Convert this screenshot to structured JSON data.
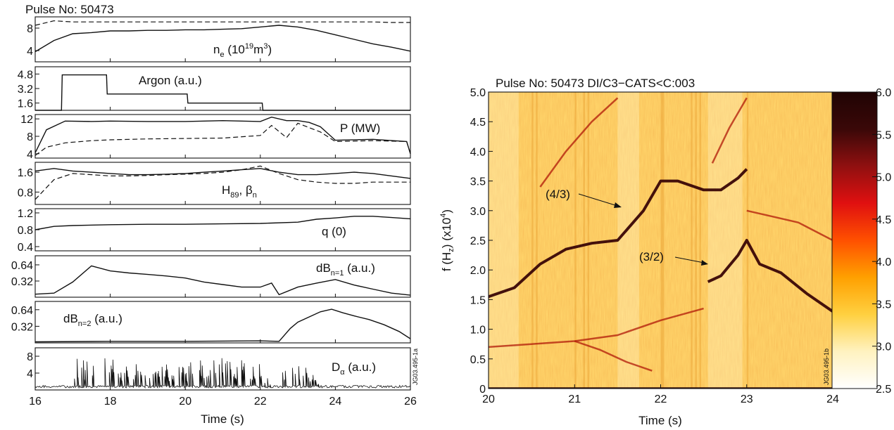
{
  "left_figure": {
    "title": "Pulse No: 50473",
    "side_code": "JG03.495-1a",
    "xlabel": "Time (s)"
  },
  "right_figure": {
    "title": "Pulse No: 50473 DI/C3−CATS<C:003",
    "side_code": "JG03.495-1b",
    "xlabel": "Time (s)",
    "ylabel_prefix": "f (H",
    "ylabel_sub": "z",
    "ylabel_mid": ") (x10",
    "ylabel_sup": "4",
    "ylabel_suffix": ")",
    "annotation_43": "(4/3)",
    "annotation_32": "(3/2)"
  },
  "chart_data": [
    {
      "type": "line",
      "x": [
        16,
        16.5,
        17,
        17.5,
        18,
        18.5,
        19,
        19.5,
        20,
        20.5,
        21,
        21.5,
        22,
        22.5,
        23,
        23.5,
        24,
        24.5,
        25,
        25.5,
        26
      ],
      "xlim": [
        16,
        26
      ],
      "xticks": [
        "16",
        "18",
        "20",
        "22",
        "24",
        "26"
      ],
      "ylim": [
        2,
        10
      ],
      "yticks": [
        "4",
        "8"
      ],
      "label_base": "n",
      "label_sub": "e",
      "label_mid": " (10",
      "label_sup": "19",
      "label_tail": "m",
      "label_sup2": "3",
      "label_end": ")",
      "series": [
        {
          "style": "solid",
          "values": [
            3.8,
            5.8,
            7.0,
            7.2,
            7.5,
            7.5,
            7.6,
            7.6,
            7.7,
            7.7,
            7.8,
            7.9,
            8.2,
            8.5,
            8.2,
            7.6,
            6.8,
            6.0,
            5.2,
            4.6,
            3.9
          ]
        },
        {
          "style": "dashed",
          "values": [
            8.5,
            9.3,
            9.1,
            9.1,
            9.1,
            9.1,
            9.1,
            9.1,
            9.1,
            9.1,
            9.1,
            9.1,
            9.1,
            9.1,
            9.1,
            9.1,
            9.1,
            9.1,
            9.1,
            9.0,
            9.0
          ]
        }
      ],
      "grid": false
    },
    {
      "type": "line",
      "x": [
        16,
        16.7,
        16.72,
        17.9,
        17.92,
        20.05,
        20.07,
        22.05,
        22.07,
        26
      ],
      "xlim": [
        16,
        26
      ],
      "ylim": [
        0.8,
        5.6
      ],
      "yticks": [
        "4.8",
        "3.2",
        "1.6"
      ],
      "label": "Argon (a.u.)",
      "series": [
        {
          "style": "solid",
          "values": [
            0.8,
            0.8,
            4.7,
            4.7,
            2.6,
            2.6,
            1.6,
            1.6,
            0.8,
            0.8
          ]
        }
      ],
      "grid": false
    },
    {
      "type": "line",
      "x": [
        16,
        16.3,
        16.8,
        17.5,
        18,
        19,
        20,
        21,
        22,
        22.3,
        22.7,
        23,
        23.3,
        23.6,
        24,
        25,
        25.9,
        26
      ],
      "xlim": [
        16,
        26
      ],
      "ylim": [
        3,
        13
      ],
      "yticks": [
        "12",
        "8",
        "4"
      ],
      "label": "P (MW)",
      "series": [
        {
          "style": "solid",
          "values": [
            4.2,
            9.5,
            11.5,
            11.4,
            11.5,
            11.4,
            11.4,
            11.6,
            11.4,
            12.4,
            11.6,
            11.6,
            11.2,
            10.2,
            7.1,
            7.3,
            6.8,
            4.0
          ]
        },
        {
          "style": "dashed",
          "values": [
            3.6,
            5.5,
            6.5,
            7.0,
            7.2,
            7.4,
            7.5,
            7.6,
            8.2,
            10.5,
            7.7,
            11.0,
            10.0,
            9.0,
            6.8,
            7.0,
            6.8,
            4.0
          ]
        }
      ],
      "grid": false
    },
    {
      "type": "line",
      "x": [
        16,
        16.5,
        17,
        17.5,
        18,
        18.5,
        19,
        19.5,
        20,
        20.5,
        21,
        21.5,
        22,
        22.5,
        23,
        23.5,
        24,
        24.5,
        25,
        25.5,
        26
      ],
      "xlim": [
        16,
        26
      ],
      "ylim": [
        0.3,
        2.0
      ],
      "yticks": [
        "1.6",
        "0.8"
      ],
      "label_base": "H",
      "label_sub": "89",
      "label_mid": ", β",
      "label_sub2": "n",
      "series": [
        {
          "style": "solid",
          "values": [
            1.65,
            1.75,
            1.65,
            1.6,
            1.55,
            1.5,
            1.5,
            1.52,
            1.55,
            1.6,
            1.65,
            1.7,
            1.75,
            1.6,
            1.5,
            1.5,
            1.55,
            1.6,
            1.55,
            1.45,
            1.35
          ]
        },
        {
          "style": "dashed",
          "values": [
            0.5,
            1.3,
            1.55,
            1.5,
            1.45,
            1.45,
            1.47,
            1.5,
            1.52,
            1.55,
            1.6,
            1.7,
            1.85,
            1.55,
            1.3,
            1.2,
            1.15,
            1.15,
            1.2,
            1.2,
            1.2
          ]
        }
      ],
      "grid": false
    },
    {
      "type": "line",
      "x": [
        16,
        16.5,
        17,
        18,
        19,
        20,
        21,
        22,
        23,
        23.5,
        24,
        24.5,
        25,
        25.5,
        26
      ],
      "xlim": [
        16,
        26
      ],
      "ylim": [
        0.3,
        1.3
      ],
      "yticks": [
        "1.2",
        "0.8",
        "0.4"
      ],
      "label": "q (0)",
      "series": [
        {
          "style": "solid",
          "values": [
            0.8,
            0.88,
            0.9,
            0.92,
            0.93,
            0.93,
            0.94,
            0.95,
            0.98,
            1.05,
            1.08,
            1.12,
            1.12,
            1.09,
            1.06
          ]
        }
      ],
      "grid": false
    },
    {
      "type": "line",
      "x": [
        16,
        16.5,
        17,
        17.5,
        18,
        18.5,
        19,
        19.5,
        20,
        20.5,
        21,
        21.5,
        22,
        22.3,
        22.5,
        23,
        23.5,
        24,
        24.5,
        25,
        25.5,
        26
      ],
      "xlim": [
        16,
        26
      ],
      "ylim": [
        0,
        0.82
      ],
      "yticks": [
        "0.64",
        "0.32"
      ],
      "label_base": "dB",
      "label_sub": "n=1",
      "label_tail": " (a.u.)",
      "series": [
        {
          "style": "solid",
          "values": [
            0.06,
            0.08,
            0.3,
            0.62,
            0.52,
            0.48,
            0.45,
            0.42,
            0.38,
            0.3,
            0.25,
            0.2,
            0.2,
            0.28,
            0.05,
            0.2,
            0.28,
            0.35,
            0.24,
            0.16,
            0.08,
            0.04
          ]
        }
      ],
      "grid": false
    },
    {
      "type": "line",
      "x": [
        16,
        18,
        20,
        22,
        22.5,
        22.8,
        23,
        23.3,
        23.6,
        23.9,
        24.2,
        24.5,
        24.9,
        25.3,
        25.7,
        26
      ],
      "xlim": [
        16,
        26
      ],
      "ylim": [
        0,
        0.8
      ],
      "yticks": [
        "0.64",
        "0.32"
      ],
      "label_base": "dB",
      "label_sub": "n=2",
      "label_tail": " (a.u.)",
      "series": [
        {
          "style": "solid",
          "values": [
            0.02,
            0.03,
            0.03,
            0.04,
            0.03,
            0.28,
            0.4,
            0.5,
            0.6,
            0.65,
            0.58,
            0.52,
            0.45,
            0.35,
            0.22,
            0.08
          ]
        }
      ],
      "grid": false
    },
    {
      "type": "line",
      "x": [
        16,
        16.8,
        17,
        18,
        19,
        20,
        21,
        22,
        22.3,
        22.6,
        23.2,
        23.6,
        24.2,
        25,
        26
      ],
      "xlim": [
        16,
        26
      ],
      "xticks": [
        "16",
        "18",
        "20",
        "22",
        "24",
        "26"
      ],
      "ylim": [
        0,
        10
      ],
      "yticks": [
        "8",
        "4"
      ],
      "label_base": "D",
      "label_sub": "α",
      "label_tail": " (a.u.)",
      "series": [
        {
          "style": "spiky",
          "values": [
            0.3,
            0.4,
            8.5,
            7.5,
            6.0,
            6.5,
            8.0,
            7.0,
            0.5,
            6.0,
            6.5,
            0.8,
            0.6,
            0.5,
            0.4
          ]
        }
      ],
      "grid": false
    },
    {
      "type": "heatmap",
      "xlabel": "Time (s)",
      "xlim": [
        20,
        24
      ],
      "xticks": [
        "20",
        "21",
        "22",
        "23",
        "24"
      ],
      "ylim": [
        0,
        5
      ],
      "yticks": [
        "0",
        "0.5",
        "1.0",
        "1.5",
        "2.0",
        "2.5",
        "3.0",
        "3.5",
        "4.0",
        "4.5",
        "5.0"
      ],
      "colorbar": {
        "range": [
          2.5,
          6.0
        ],
        "ticks": [
          "6.0",
          "5.5",
          "5.0",
          "4.5",
          "4.0",
          "3.5",
          "3.0",
          "2.5"
        ],
        "colors": [
          "#ffffff",
          "#fff2c0",
          "#ffd040",
          "#ffa000",
          "#ff5000",
          "#e01010",
          "#901010",
          "#3a0808",
          "#200404"
        ]
      },
      "ridges": [
        {
          "name": "(4/3)",
          "x": [
            20,
            20.3,
            20.6,
            20.9,
            21.2,
            21.5,
            21.8,
            22.0,
            22.2,
            22.5,
            22.7,
            22.9,
            23.0
          ],
          "y": [
            1.55,
            1.7,
            2.1,
            2.35,
            2.45,
            2.5,
            3.0,
            3.5,
            3.5,
            3.35,
            3.35,
            3.55,
            3.7
          ]
        },
        {
          "name": "(3/2)",
          "x": [
            22.55,
            22.7,
            22.9,
            23.0,
            23.15,
            23.4,
            23.7,
            24.0
          ],
          "y": [
            1.8,
            1.9,
            2.25,
            2.5,
            2.1,
            1.95,
            1.6,
            1.3
          ]
        },
        {
          "x": [
            20,
            20.5,
            21.0,
            21.5,
            22.0,
            22.5
          ],
          "y": [
            0.7,
            0.75,
            0.8,
            0.9,
            1.15,
            1.35
          ]
        },
        {
          "x": [
            21.0,
            21.3,
            21.6,
            21.9
          ],
          "y": [
            0.8,
            0.65,
            0.45,
            0.3
          ]
        },
        {
          "x": [
            23.0,
            23.3,
            23.6,
            24.0
          ],
          "y": [
            3.0,
            2.9,
            2.8,
            2.5
          ]
        },
        {
          "x": [
            20.6,
            20.9,
            21.2,
            21.5
          ],
          "y": [
            3.4,
            4.0,
            4.5,
            4.9
          ]
        },
        {
          "x": [
            22.6,
            22.8,
            23.0
          ],
          "y": [
            3.8,
            4.4,
            4.9
          ]
        }
      ],
      "grid": false
    }
  ]
}
